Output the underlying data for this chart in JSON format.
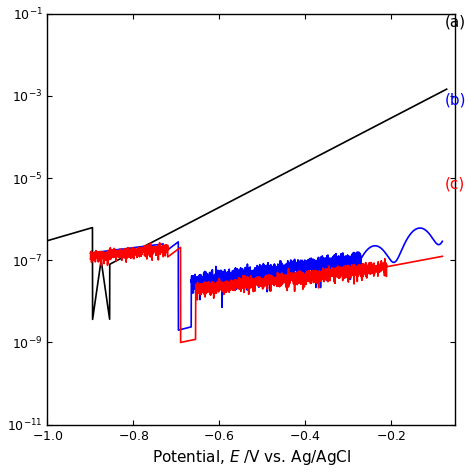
{
  "xlabel": "Potential, $E$ /V vs. Ag/AgCl",
  "xlim": [
    -1.0,
    -0.05
  ],
  "label_a": "(a)",
  "label_b": "(b)",
  "label_c": "(c)",
  "color_a": "#000000",
  "color_b": "#0000ff",
  "color_c": "#ff0000",
  "background": "#ffffff",
  "yticks": [
    1e-11,
    1e-09,
    1e-07,
    1e-05,
    0.001,
    0.1
  ],
  "xticks": [
    -1.0,
    -0.8,
    -0.6,
    -0.4,
    -0.2
  ]
}
